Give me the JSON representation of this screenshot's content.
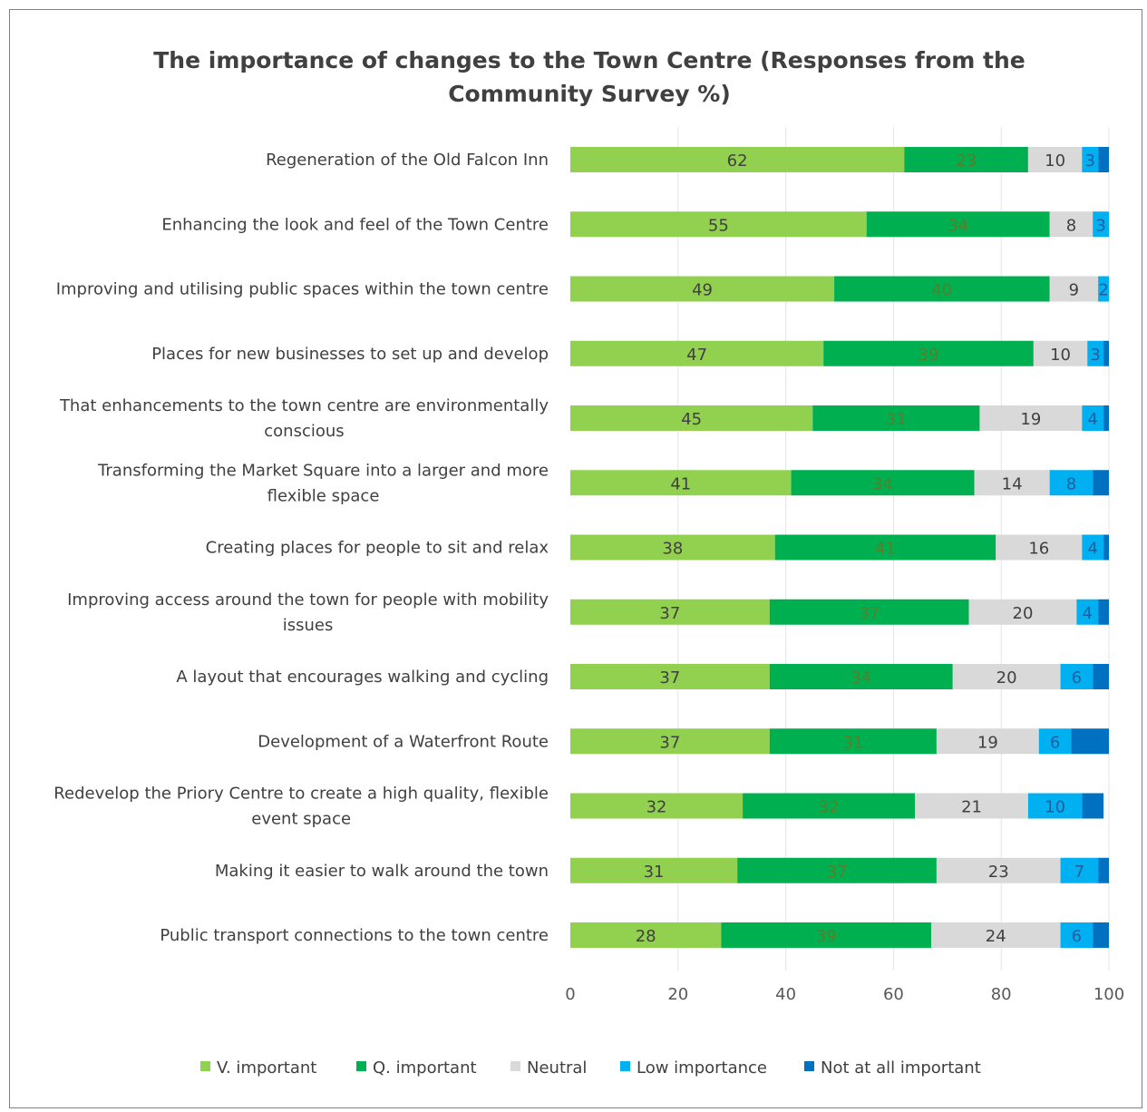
{
  "chart_data": {
    "type": "bar",
    "orientation": "horizontal",
    "stacked": true,
    "title": "The importance of changes to the Town Centre (Responses from the Community Survey %)",
    "xlabel": "",
    "ylabel": "",
    "xlim": [
      0,
      100
    ],
    "xticks": [
      0,
      20,
      40,
      60,
      80,
      100
    ],
    "grid": "vertical",
    "legend_position": "bottom",
    "categories": [
      [
        "Regeneration of the Old Falcon Inn"
      ],
      [
        "Enhancing the look and feel of the Town Centre"
      ],
      [
        "Improving and utilising public spaces within the town centre"
      ],
      [
        "Places for new businesses to set up and develop"
      ],
      [
        "That enhancements to the town centre are environmentally",
        "conscious"
      ],
      [
        "Transforming the Market Square into a larger and more",
        "flexible space"
      ],
      [
        "Creating places for people to sit and relax"
      ],
      [
        "Improving access around the town for people with mobility",
        "issues"
      ],
      [
        "A layout that encourages walking and cycling"
      ],
      [
        "Development of a Waterfront Route"
      ],
      [
        "Redevelop the Priory Centre to create a high quality, flexible",
        "event space"
      ],
      [
        "Making it easier to walk around the town"
      ],
      [
        "Public transport connections to the town centre"
      ]
    ],
    "series": [
      {
        "name": "V. important",
        "color": "#92d050",
        "label_color": "#404040",
        "values": [
          62,
          55,
          49,
          47,
          45,
          41,
          38,
          37,
          37,
          37,
          32,
          31,
          28
        ],
        "labels": [
          "62",
          "55",
          "49",
          "47",
          "45",
          "41",
          "38",
          "37",
          "37",
          "37",
          "32",
          "31",
          "28"
        ]
      },
      {
        "name": "Q. important",
        "color": "#00b050",
        "label_color": "#5b7d2a",
        "values": [
          23,
          34,
          40,
          39,
          31,
          34,
          41,
          37,
          34,
          31,
          32,
          37,
          39
        ],
        "labels": [
          "23",
          "34",
          "40",
          "39",
          "31",
          "34",
          "41",
          "37",
          "34",
          "31",
          "32",
          "37",
          "39"
        ]
      },
      {
        "name": "Neutral",
        "color": "#d9d9d9",
        "label_color": "#404040",
        "values": [
          10,
          8,
          9,
          10,
          19,
          14,
          16,
          20,
          20,
          19,
          21,
          23,
          24
        ],
        "labels": [
          "10",
          "8",
          "9",
          "10",
          "19",
          "14",
          "16",
          "20",
          "20",
          "19",
          "21",
          "23",
          "24"
        ]
      },
      {
        "name": "Low importance",
        "color": "#00b0f0",
        "label_color": "#1f5f9f",
        "values": [
          3,
          3,
          2,
          3,
          4,
          8,
          4,
          4,
          6,
          6,
          10,
          7,
          6
        ],
        "labels": [
          "3",
          "3",
          "2",
          "3",
          "4",
          "8",
          "4",
          "4",
          "6",
          "6",
          "10",
          "7",
          "6"
        ]
      },
      {
        "name": "Not at all important",
        "color": "#0070c0",
        "label_color": "#404040",
        "values": [
          2,
          0,
          0,
          1,
          1,
          3,
          1,
          2,
          3,
          7,
          4,
          2,
          3
        ],
        "labels": [
          "",
          "",
          "",
          "",
          "",
          "",
          "",
          "",
          "",
          "",
          "",
          "",
          ""
        ]
      }
    ]
  }
}
